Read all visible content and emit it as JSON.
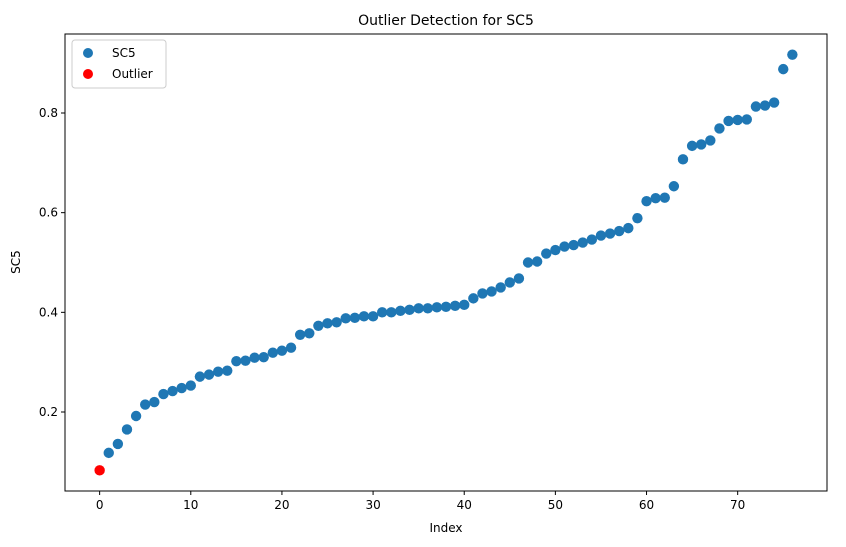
{
  "chart_data": {
    "type": "scatter",
    "title": "Outlier Detection for SC5",
    "xlabel": "Index",
    "ylabel": "SC5",
    "xlim": [
      -3.8,
      79.8
    ],
    "ylim": [
      0.0415,
      0.9585
    ],
    "xticks": [
      0,
      10,
      20,
      30,
      40,
      50,
      60,
      70
    ],
    "yticks": [
      0.2,
      0.4,
      0.6,
      0.8
    ],
    "ytick_labels": [
      "0.2",
      "0.4",
      "0.6",
      "0.8"
    ],
    "grid": false,
    "legend_position": "top-left",
    "series": [
      {
        "name": "SC5",
        "color": "#1f77b4",
        "x": [
          1,
          2,
          3,
          4,
          5,
          6,
          7,
          8,
          9,
          10,
          11,
          12,
          13,
          14,
          15,
          16,
          17,
          18,
          19,
          20,
          21,
          22,
          23,
          24,
          25,
          26,
          27,
          28,
          29,
          30,
          31,
          32,
          33,
          34,
          35,
          36,
          37,
          38,
          39,
          40,
          41,
          42,
          43,
          44,
          45,
          46,
          47,
          48,
          49,
          50,
          51,
          52,
          53,
          54,
          55,
          56,
          57,
          58,
          59,
          60,
          61,
          62,
          63,
          64,
          65,
          66,
          67,
          68,
          69,
          70,
          71,
          72,
          73,
          74,
          75,
          76
        ],
        "y": [
          0.118,
          0.136,
          0.165,
          0.192,
          0.215,
          0.22,
          0.236,
          0.242,
          0.248,
          0.253,
          0.271,
          0.275,
          0.281,
          0.283,
          0.302,
          0.303,
          0.309,
          0.31,
          0.319,
          0.323,
          0.329,
          0.355,
          0.358,
          0.373,
          0.378,
          0.38,
          0.388,
          0.389,
          0.392,
          0.392,
          0.4,
          0.4,
          0.403,
          0.405,
          0.408,
          0.408,
          0.41,
          0.411,
          0.413,
          0.415,
          0.428,
          0.438,
          0.442,
          0.45,
          0.46,
          0.468,
          0.5,
          0.502,
          0.518,
          0.525,
          0.532,
          0.535,
          0.54,
          0.546,
          0.554,
          0.558,
          0.563,
          0.569,
          0.589,
          0.623,
          0.629,
          0.63,
          0.653,
          0.707,
          0.734,
          0.737,
          0.745,
          0.769,
          0.784,
          0.786,
          0.787,
          0.813,
          0.815,
          0.821,
          0.888,
          0.917
        ]
      },
      {
        "name": "Outlier",
        "color": "#ff0000",
        "x": [
          0
        ],
        "y": [
          0.083
        ]
      }
    ]
  }
}
